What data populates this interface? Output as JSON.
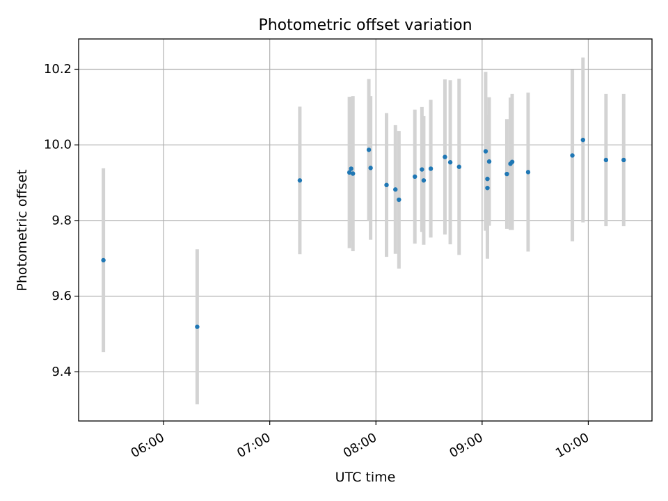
{
  "chart_data": {
    "type": "scatter",
    "title": "Photometric offset variation",
    "xlabel": "UTC time",
    "ylabel": "Photometric offset",
    "x_ticks": [
      "06:00",
      "07:00",
      "08:00",
      "09:00",
      "10:00"
    ],
    "y_ticks": [
      "9.4",
      "9.6",
      "9.8",
      "10.0",
      "10.2"
    ],
    "xlim": [
      "05:12",
      "10:36"
    ],
    "ylim": [
      9.27,
      10.28
    ],
    "grid": true,
    "colors": {
      "point": "#1f77b4",
      "errorbar": "#d3d3d3",
      "grid": "#b0b0b0"
    },
    "points": [
      {
        "x": "05:26",
        "y": 9.695,
        "err": 0.243
      },
      {
        "x": "06:19",
        "y": 9.519,
        "err": 0.205
      },
      {
        "x": "07:17",
        "y": 9.906,
        "err": 0.195
      },
      {
        "x": "07:45",
        "y": 9.927,
        "err": 0.2
      },
      {
        "x": "07:46",
        "y": 9.937,
        "err": 0.19
      },
      {
        "x": "07:47",
        "y": 9.924,
        "err": 0.205
      },
      {
        "x": "07:56",
        "y": 9.987,
        "err": 0.187
      },
      {
        "x": "07:57",
        "y": 9.939,
        "err": 0.19
      },
      {
        "x": "08:06",
        "y": 9.894,
        "err": 0.19
      },
      {
        "x": "08:11",
        "y": 9.882,
        "err": 0.17
      },
      {
        "x": "08:13",
        "y": 9.855,
        "err": 0.182
      },
      {
        "x": "08:22",
        "y": 9.916,
        "err": 0.177
      },
      {
        "x": "08:26",
        "y": 9.935,
        "err": 0.165
      },
      {
        "x": "08:27",
        "y": 9.906,
        "err": 0.17
      },
      {
        "x": "08:31",
        "y": 9.937,
        "err": 0.182
      },
      {
        "x": "08:39",
        "y": 9.968,
        "err": 0.205
      },
      {
        "x": "08:42",
        "y": 9.954,
        "err": 0.217
      },
      {
        "x": "08:47",
        "y": 9.942,
        "err": 0.233
      },
      {
        "x": "09:02",
        "y": 9.983,
        "err": 0.21
      },
      {
        "x": "09:03",
        "y": 9.886,
        "err": 0.187
      },
      {
        "x": "09:03",
        "y": 9.91,
        "err": 0.17
      },
      {
        "x": "09:04",
        "y": 9.956,
        "err": 0.17
      },
      {
        "x": "09:14",
        "y": 9.923,
        "err": 0.145
      },
      {
        "x": "09:16",
        "y": 9.95,
        "err": 0.175
      },
      {
        "x": "09:17",
        "y": 9.955,
        "err": 0.18
      },
      {
        "x": "09:26",
        "y": 9.928,
        "err": 0.21
      },
      {
        "x": "09:51",
        "y": 9.972,
        "err": 0.227
      },
      {
        "x": "09:57",
        "y": 10.013,
        "err": 0.218
      },
      {
        "x": "10:10",
        "y": 9.96,
        "err": 0.175
      },
      {
        "x": "10:20",
        "y": 9.96,
        "err": 0.175
      }
    ]
  }
}
